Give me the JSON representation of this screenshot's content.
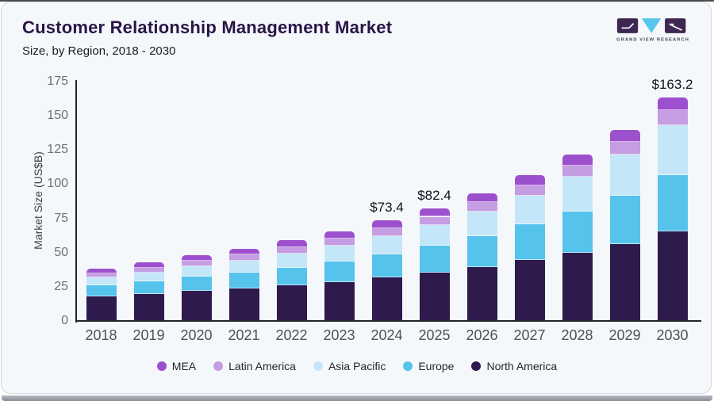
{
  "page": {
    "title": "Customer Relationship Management Market",
    "subtitle": "Size, by Region, 2018 - 2030"
  },
  "logo": {
    "brand_name": "GRAND VIEW RESEARCH",
    "square_color": "#3e2752",
    "triangle_color": "#56c8ec",
    "text_color": "#40454f"
  },
  "chart_data": {
    "type": "bar",
    "stacked": true,
    "title": "Customer Relationship Management Market",
    "subtitle": "Size, by Region, 2018 - 2030",
    "xlabel": "",
    "ylabel": "Market Size (US$B)",
    "ylim": [
      0,
      175
    ],
    "yticks": [
      0,
      25,
      50,
      75,
      100,
      125,
      150,
      175
    ],
    "grid": false,
    "legend_position": "bottom",
    "categories": [
      "2018",
      "2019",
      "2020",
      "2021",
      "2022",
      "2023",
      "2024",
      "2025",
      "2026",
      "2027",
      "2028",
      "2029",
      "2030"
    ],
    "series": [
      {
        "name": "North America",
        "color": "#2e1a4d",
        "values": [
          18.0,
          19.8,
          22.0,
          23.8,
          25.9,
          28.2,
          31.8,
          35.4,
          39.6,
          44.6,
          50.1,
          56.4,
          65.3
        ]
      },
      {
        "name": "Europe",
        "color": "#55c3ec",
        "values": [
          7.9,
          9.0,
          10.3,
          11.6,
          13.2,
          15.0,
          17.1,
          19.5,
          22.4,
          25.9,
          30.0,
          35.2,
          41.4
        ]
      },
      {
        "name": "Asia Pacific",
        "color": "#c3e7f8",
        "values": [
          5.8,
          6.7,
          7.7,
          8.8,
          10.2,
          11.6,
          13.1,
          15.2,
          17.9,
          21.2,
          25.2,
          30.1,
          36.4
        ]
      },
      {
        "name": "Latin America",
        "color": "#c59de2",
        "values": [
          2.9,
          3.3,
          3.9,
          4.3,
          4.7,
          5.2,
          5.6,
          6.1,
          6.8,
          7.5,
          8.4,
          9.4,
          11.0
        ]
      },
      {
        "name": "MEA",
        "color": "#9d50ce",
        "values": [
          3.6,
          4.0,
          4.1,
          4.5,
          5.0,
          5.5,
          5.8,
          6.2,
          6.8,
          7.2,
          7.8,
          8.4,
          9.1
        ]
      }
    ],
    "totals": [
      38.2,
      42.8,
      48.0,
      53.0,
      59.0,
      65.5,
      73.4,
      82.4,
      93.5,
      106.4,
      121.5,
      139.5,
      163.2
    ],
    "value_labels": [
      {
        "category": "2024",
        "text": "$73.4"
      },
      {
        "category": "2025",
        "text": "$82.4"
      },
      {
        "category": "2030",
        "text": "$163.2"
      }
    ],
    "legend": [
      {
        "label": "MEA",
        "color": "#9d50ce"
      },
      {
        "label": "Latin America",
        "color": "#c59de2"
      },
      {
        "label": "Asia Pacific",
        "color": "#c3e7f8"
      },
      {
        "label": "Europe",
        "color": "#55c3ec"
      },
      {
        "label": "North America",
        "color": "#2e1a4d"
      }
    ]
  }
}
